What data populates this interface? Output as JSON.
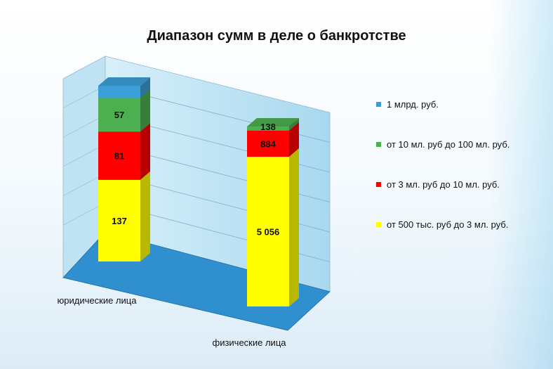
{
  "chart_data": {
    "type": "bar",
    "stacked": true,
    "title": "Диапазон сумм в деле о банкротстве",
    "categories": [
      "юридические лица",
      "физические лица"
    ],
    "series": [
      {
        "name": "от 500 тыс. руб до 3 мл. руб.",
        "color": "#ffff00",
        "values": [
          137,
          5056
        ],
        "labels": [
          "137",
          "5 056"
        ]
      },
      {
        "name": "от 3 мл. руб до 10 мл. руб.",
        "color": "#ff0000",
        "values": [
          81,
          884
        ],
        "labels": [
          "81",
          "884"
        ]
      },
      {
        "name": "от 10 мл. руб до 100 мл. руб.",
        "color": "#4caf50",
        "values": [
          57,
          138
        ],
        "labels": [
          "57",
          "138"
        ]
      },
      {
        "name": "1 млрд. руб.",
        "color": "#3a9fd6",
        "values": [
          20,
          0
        ],
        "labels": [
          "",
          ""
        ]
      }
    ],
    "legend_order": [
      3,
      2,
      1,
      0
    ],
    "legend_position": "right",
    "grid": true
  }
}
